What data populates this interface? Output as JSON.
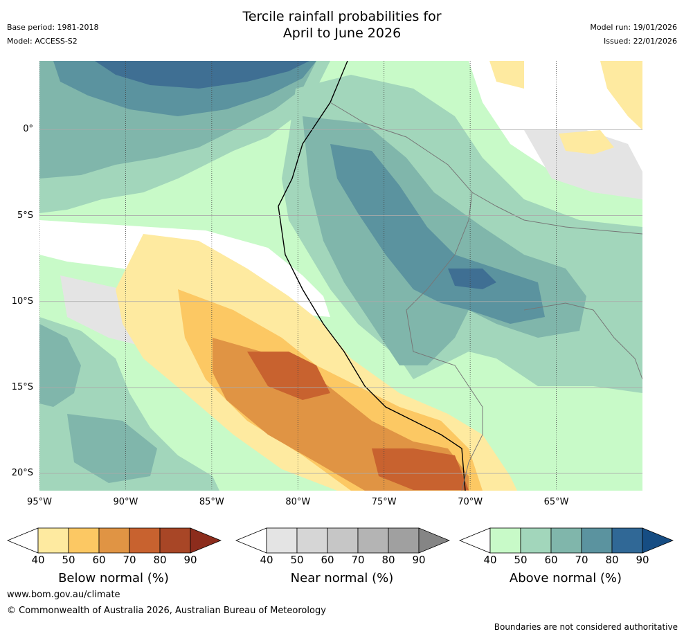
{
  "title": {
    "line1": "Tercile rainfall probabilities for",
    "line2": "April to June 2026"
  },
  "meta": {
    "base_period": "Base period: 1981-2018",
    "model": "Model: ACCESS-S2",
    "model_run": "Model run: 19/01/2026",
    "issued": "Issued: 22/01/2026"
  },
  "map": {
    "lat_labels": [
      "0°",
      "5°S",
      "10°S",
      "15°S",
      "20°S"
    ],
    "lon_labels": [
      "95°W",
      "90°W",
      "85°W",
      "80°W",
      "75°W",
      "70°W",
      "65°W"
    ],
    "lat_values": [
      0,
      -5,
      -10,
      -15,
      -20
    ],
    "lon_values": [
      -95,
      -90,
      -85,
      -80,
      -75,
      -70,
      -65
    ],
    "extent": {
      "lon_min": -95,
      "lon_max": -60,
      "lat_min": -21,
      "lat_max": 4
    }
  },
  "colorbars": [
    {
      "title": "Below normal (%)",
      "ticks": [
        "40",
        "50",
        "60",
        "70",
        "80",
        "90"
      ],
      "colors": [
        "#ffffff",
        "#feeaa0",
        "#fcc863",
        "#e09444",
        "#c8622f",
        "#a84626",
        "#8c2c1c"
      ]
    },
    {
      "title": "Near normal (%)",
      "ticks": [
        "40",
        "50",
        "60",
        "70",
        "80",
        "90"
      ],
      "colors": [
        "#ffffff",
        "#e4e4e4",
        "#d6d6d6",
        "#c6c6c6",
        "#b4b4b4",
        "#a0a0a0",
        "#858585"
      ]
    },
    {
      "title": "Above normal (%)",
      "ticks": [
        "40",
        "50",
        "60",
        "70",
        "80",
        "90"
      ],
      "colors": [
        "#ffffff",
        "#c8fac8",
        "#a2d6bb",
        "#80b6ab",
        "#5b939f",
        "#306896",
        "#164d83"
      ]
    }
  ],
  "footer": {
    "url": "www.bom.gov.au/climate",
    "copyright": "© Commonwealth of Australia 2026, Australian Bureau of Meteorology",
    "disclaimer": "Boundaries are not considered authoritative"
  }
}
